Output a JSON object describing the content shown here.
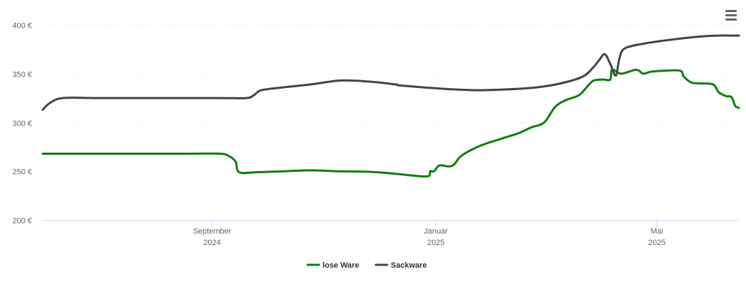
{
  "chart_data": {
    "type": "line",
    "title": "",
    "xlabel": "",
    "ylabel": "",
    "x_range": [
      "2024-06-01",
      "2025-06-15"
    ],
    "ylim": [
      200,
      400
    ],
    "y_ticks": [
      {
        "value": 200,
        "label": "200 €"
      },
      {
        "value": 250,
        "label": "250 €"
      },
      {
        "value": 300,
        "label": "300 €"
      },
      {
        "value": 350,
        "label": "350 €"
      },
      {
        "value": 400,
        "label": "400 €"
      }
    ],
    "x_ticks": [
      {
        "date": "2024-09-01",
        "label": "September",
        "year": "2024"
      },
      {
        "date": "2025-01-01",
        "label": "Januar",
        "year": "2025"
      },
      {
        "date": "2025-05-01",
        "label": "Mai",
        "year": "2025"
      }
    ],
    "grid": true,
    "legend_position": "bottom-center",
    "series": [
      {
        "name": "lose Ware",
        "color": "#0e7d0e",
        "points": [
          [
            "2024-06-01",
            268
          ],
          [
            "2024-07-15",
            268
          ],
          [
            "2024-08-15",
            268
          ],
          [
            "2024-09-05",
            268
          ],
          [
            "2024-09-10",
            266
          ],
          [
            "2024-09-14",
            260
          ],
          [
            "2024-09-16",
            249
          ],
          [
            "2024-09-25",
            249
          ],
          [
            "2024-10-10",
            250
          ],
          [
            "2024-10-25",
            251
          ],
          [
            "2024-11-10",
            250
          ],
          [
            "2024-11-25",
            249.5
          ],
          [
            "2024-12-10",
            247.5
          ],
          [
            "2024-12-20",
            245.5
          ],
          [
            "2024-12-28",
            245
          ],
          [
            "2024-12-29",
            250
          ],
          [
            "2024-12-31",
            250
          ],
          [
            "2025-01-03",
            256
          ],
          [
            "2025-01-08",
            255
          ],
          [
            "2025-01-11",
            257
          ],
          [
            "2025-01-15",
            266
          ],
          [
            "2025-01-25",
            276
          ],
          [
            "2025-02-05",
            283
          ],
          [
            "2025-02-15",
            289
          ],
          [
            "2025-02-22",
            295
          ],
          [
            "2025-03-01",
            300
          ],
          [
            "2025-03-07",
            316
          ],
          [
            "2025-03-13",
            323
          ],
          [
            "2025-03-20",
            328
          ],
          [
            "2025-03-25",
            338
          ],
          [
            "2025-03-28",
            343
          ],
          [
            "2025-04-02",
            344
          ],
          [
            "2025-04-06",
            344
          ],
          [
            "2025-04-07",
            354
          ],
          [
            "2025-04-12",
            350
          ],
          [
            "2025-04-20",
            354
          ],
          [
            "2025-04-24",
            350
          ],
          [
            "2025-04-28",
            352
          ],
          [
            "2025-05-05",
            353
          ],
          [
            "2025-05-14",
            353
          ],
          [
            "2025-05-16",
            347
          ],
          [
            "2025-05-20",
            341
          ],
          [
            "2025-05-25",
            340
          ],
          [
            "2025-06-01",
            339
          ],
          [
            "2025-06-04",
            331
          ],
          [
            "2025-06-08",
            327
          ],
          [
            "2025-06-11",
            326
          ],
          [
            "2025-06-13",
            317
          ],
          [
            "2025-06-15",
            315
          ]
        ]
      },
      {
        "name": "Sackware",
        "color": "#434348",
        "points": [
          [
            "2024-06-01",
            313
          ],
          [
            "2024-06-05",
            320
          ],
          [
            "2024-06-12",
            325
          ],
          [
            "2024-07-01",
            325
          ],
          [
            "2024-08-01",
            325
          ],
          [
            "2024-09-05",
            325
          ],
          [
            "2024-09-20",
            325
          ],
          [
            "2024-09-24",
            328
          ],
          [
            "2024-09-28",
            333
          ],
          [
            "2024-10-10",
            336
          ],
          [
            "2024-10-25",
            339
          ],
          [
            "2024-11-10",
            343
          ],
          [
            "2024-11-25",
            342
          ],
          [
            "2024-12-10",
            339
          ],
          [
            "2024-12-12",
            338
          ],
          [
            "2024-12-25",
            336
          ],
          [
            "2025-01-10",
            334
          ],
          [
            "2025-01-25",
            333
          ],
          [
            "2025-02-10",
            334
          ],
          [
            "2025-02-25",
            336
          ],
          [
            "2025-03-10",
            340
          ],
          [
            "2025-03-22",
            347
          ],
          [
            "2025-03-28",
            357
          ],
          [
            "2025-03-31",
            364
          ],
          [
            "2025-04-03",
            370
          ],
          [
            "2025-04-06",
            360
          ],
          [
            "2025-04-09",
            348
          ],
          [
            "2025-04-11",
            366
          ],
          [
            "2025-04-14",
            376
          ],
          [
            "2025-04-25",
            381
          ],
          [
            "2025-05-10",
            385
          ],
          [
            "2025-05-25",
            388
          ],
          [
            "2025-06-04",
            389
          ],
          [
            "2025-06-10",
            389
          ],
          [
            "2025-06-15",
            389
          ]
        ]
      }
    ]
  },
  "legend": {
    "items": [
      {
        "label": "lose Ware",
        "color": "#0e7d0e"
      },
      {
        "label": "Sackware",
        "color": "#434348"
      }
    ]
  },
  "menu": {
    "icon": "hamburger-menu-icon"
  }
}
